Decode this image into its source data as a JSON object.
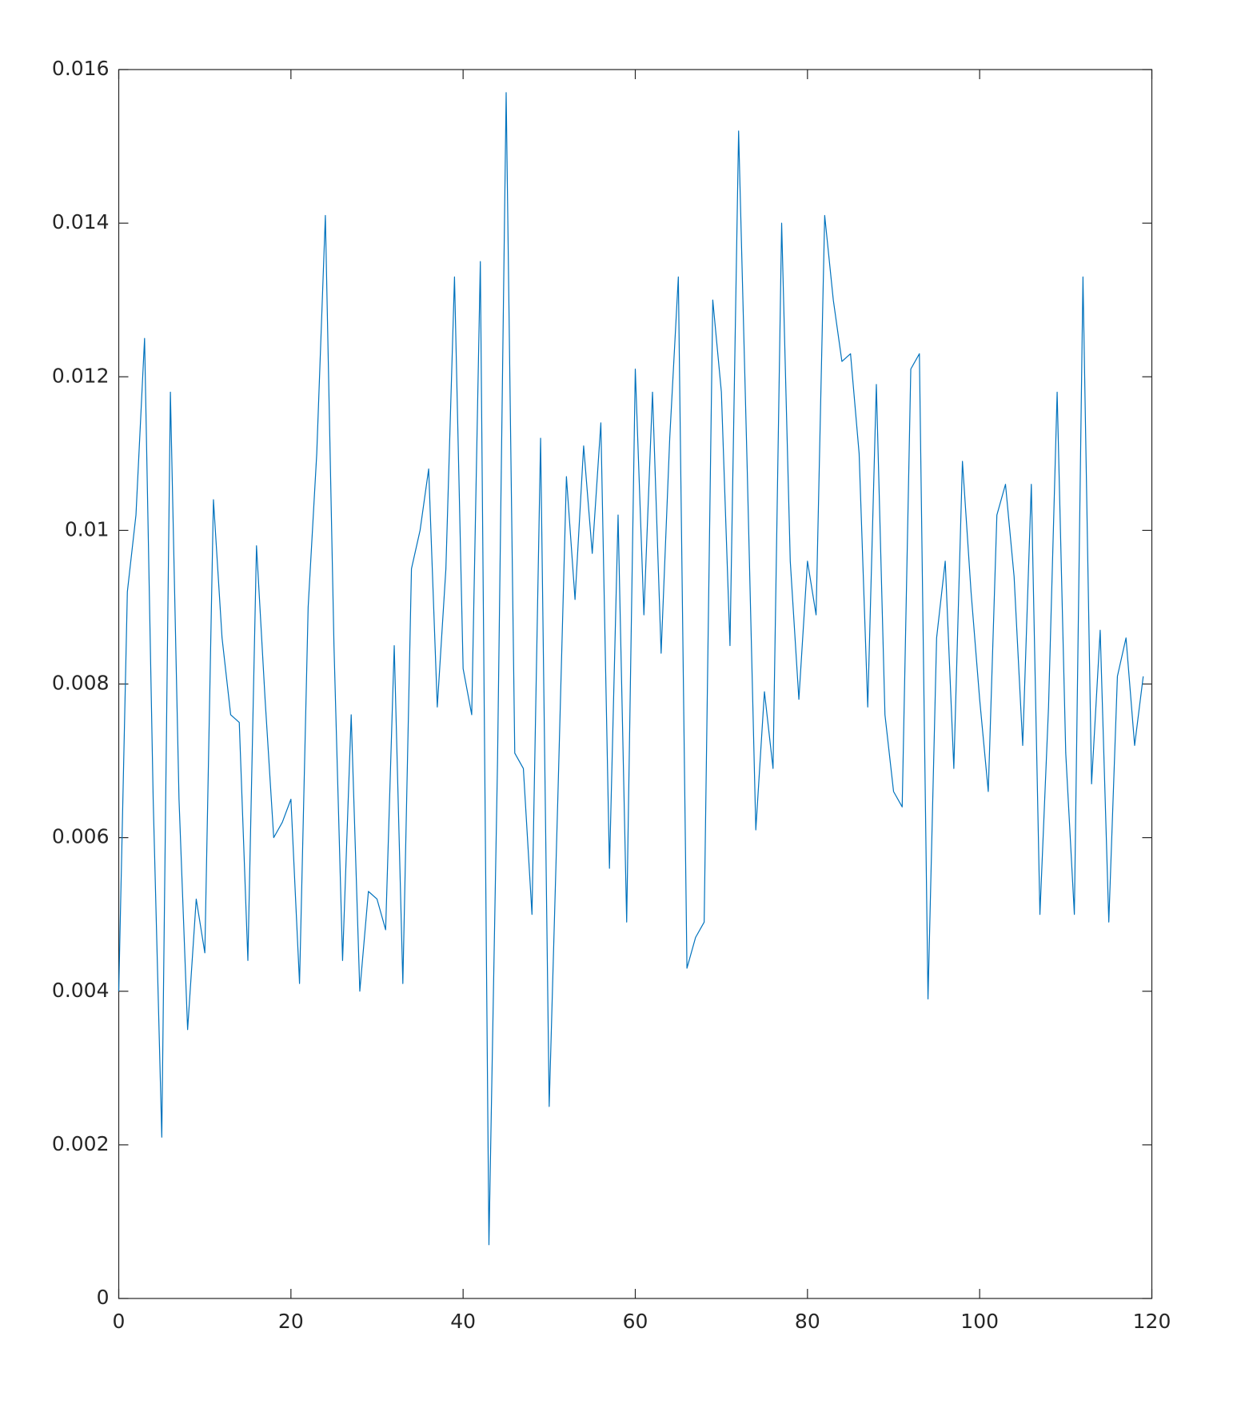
{
  "chart_data": {
    "type": "line",
    "x": [
      0,
      1,
      2,
      3,
      4,
      5,
      6,
      7,
      8,
      9,
      10,
      11,
      12,
      13,
      14,
      15,
      16,
      17,
      18,
      19,
      20,
      21,
      22,
      23,
      24,
      25,
      26,
      27,
      28,
      29,
      30,
      31,
      32,
      33,
      34,
      35,
      36,
      37,
      38,
      39,
      40,
      41,
      42,
      43,
      44,
      45,
      46,
      47,
      48,
      49,
      50,
      51,
      52,
      53,
      54,
      55,
      56,
      57,
      58,
      59,
      60,
      61,
      62,
      63,
      64,
      65,
      66,
      67,
      68,
      69,
      70,
      71,
      72,
      73,
      74,
      75,
      76,
      77,
      78,
      79,
      80,
      81,
      82,
      83,
      84,
      85,
      86,
      87,
      88,
      89,
      90,
      91,
      92,
      93,
      94,
      95,
      96,
      97,
      98,
      99,
      100,
      101,
      102,
      103,
      104,
      105,
      106,
      107,
      108,
      109,
      110,
      111,
      112,
      113,
      114,
      115,
      116,
      117,
      118,
      119
    ],
    "series": [
      {
        "color": "#0072bd",
        "values": [
          0.004,
          0.0092,
          0.0102,
          0.0125,
          0.0065,
          0.0021,
          0.0118,
          0.0065,
          0.0035,
          0.0052,
          0.0045,
          0.0104,
          0.0086,
          0.0076,
          0.0075,
          0.0044,
          0.0098,
          0.0078,
          0.006,
          0.0062,
          0.0065,
          0.0041,
          0.009,
          0.011,
          0.0141,
          0.0085,
          0.0044,
          0.0076,
          0.004,
          0.0053,
          0.0052,
          0.0048,
          0.0085,
          0.0041,
          0.0095,
          0.01,
          0.0108,
          0.0077,
          0.0095,
          0.0133,
          0.0082,
          0.0076,
          0.0135,
          0.0007,
          0.007,
          0.0157,
          0.0071,
          0.0069,
          0.005,
          0.0112,
          0.0025,
          0.0065,
          0.0107,
          0.0091,
          0.0111,
          0.0097,
          0.0114,
          0.0056,
          0.0102,
          0.0049,
          0.0121,
          0.0089,
          0.0118,
          0.0084,
          0.0112,
          0.0133,
          0.0043,
          0.0047,
          0.0049,
          0.013,
          0.0118,
          0.0085,
          0.0152,
          0.0108,
          0.0061,
          0.0079,
          0.0069,
          0.014,
          0.0096,
          0.0078,
          0.0096,
          0.0089,
          0.0141,
          0.013,
          0.0122,
          0.0123,
          0.011,
          0.0077,
          0.0119,
          0.0076,
          0.0066,
          0.0064,
          0.0121,
          0.0123,
          0.0039,
          0.0086,
          0.0096,
          0.0069,
          0.0109,
          0.0092,
          0.0078,
          0.0066,
          0.0102,
          0.0106,
          0.0094,
          0.0072,
          0.0106,
          0.005,
          0.0077,
          0.0118,
          0.0071,
          0.005,
          0.0133,
          0.0067,
          0.0087,
          0.0049,
          0.0081,
          0.0086,
          0.0072,
          0.0081
        ]
      }
    ],
    "xlim": [
      0,
      120
    ],
    "xticks": [
      0,
      20,
      40,
      60,
      80,
      100,
      120
    ],
    "ylim": [
      0,
      0.016
    ],
    "yticks": [
      0,
      0.002,
      0.004,
      0.006,
      0.008,
      0.01,
      0.012,
      0.014,
      0.016
    ],
    "grid": false
  }
}
